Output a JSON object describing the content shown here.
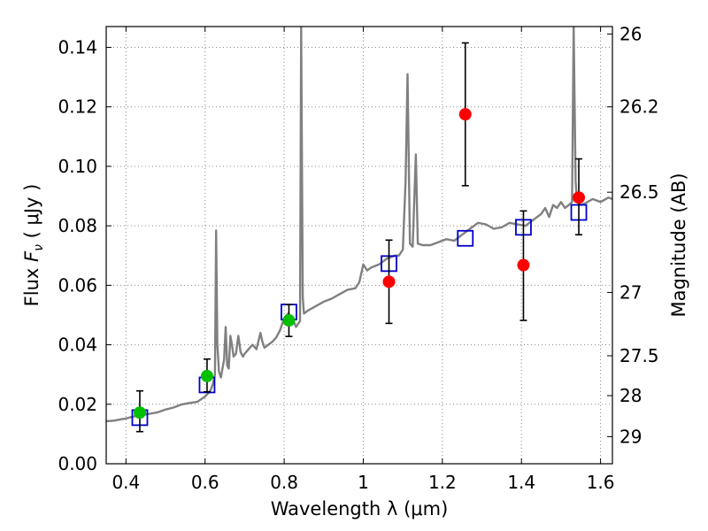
{
  "chart_data": {
    "type": "scatter",
    "xlabel": "Wavelength  λ (μm)",
    "ylabel": "Flux  F_ν  ( μJy )",
    "ylabel_parts": {
      "prefix": "Flux  ",
      "symbol": "F",
      "subscript": "ν",
      "suffix": "  ( μJy )"
    },
    "ylabel_right": "Magnitude (AB)",
    "xlim": [
      0.35,
      1.63
    ],
    "ylim": [
      0.0,
      0.147
    ],
    "grid": true,
    "x_ticks": [
      0.4,
      0.6,
      0.8,
      1.0,
      1.2,
      1.4,
      1.6
    ],
    "x_tick_labels": [
      "0.4",
      "0.6",
      "0.8",
      "1",
      "1.2",
      "1.4",
      "1.6"
    ],
    "y_ticks": [
      0.0,
      0.02,
      0.04,
      0.06,
      0.08,
      0.1,
      0.12,
      0.14
    ],
    "y_tick_labels": [
      "0.00",
      "0.02",
      "0.04",
      "0.06",
      "0.08",
      "0.10",
      "0.12",
      "0.14"
    ],
    "right_ticks": [
      {
        "flux": 0.1445,
        "label": "26"
      },
      {
        "flux": 0.12,
        "label": "26.2"
      },
      {
        "flux": 0.0913,
        "label": "26.5"
      },
      {
        "flux": 0.0576,
        "label": "27"
      },
      {
        "flux": 0.0363,
        "label": "27.5"
      },
      {
        "flux": 0.0229,
        "label": "28"
      },
      {
        "flux": 0.0091,
        "label": "29"
      }
    ],
    "colors": {
      "model": "#808080",
      "green": "#00c000",
      "red": "#ff0000",
      "blue": "#0000cc",
      "grid": "#888888",
      "error": "#000000"
    },
    "series": [
      {
        "name": "model_template",
        "style": "line",
        "points": [
          [
            0.35,
            0.0143
          ],
          [
            0.37,
            0.0145
          ],
          [
            0.39,
            0.015
          ],
          [
            0.4,
            0.0152
          ],
          [
            0.41,
            0.0156
          ],
          [
            0.42,
            0.0159
          ],
          [
            0.44,
            0.0163
          ],
          [
            0.46,
            0.0168
          ],
          [
            0.48,
            0.0173
          ],
          [
            0.5,
            0.0182
          ],
          [
            0.52,
            0.0189
          ],
          [
            0.54,
            0.0199
          ],
          [
            0.56,
            0.0204
          ],
          [
            0.58,
            0.0208
          ],
          [
            0.6,
            0.0226
          ],
          [
            0.61,
            0.024
          ],
          [
            0.615,
            0.025
          ],
          [
            0.62,
            0.027
          ],
          [
            0.625,
            0.03
          ],
          [
            0.628,
            0.0784
          ],
          [
            0.631,
            0.04
          ],
          [
            0.635,
            0.031
          ],
          [
            0.64,
            0.029
          ],
          [
            0.648,
            0.035
          ],
          [
            0.652,
            0.046
          ],
          [
            0.656,
            0.033
          ],
          [
            0.66,
            0.032
          ],
          [
            0.664,
            0.043
          ],
          [
            0.668,
            0.04
          ],
          [
            0.672,
            0.036
          ],
          [
            0.678,
            0.037
          ],
          [
            0.684,
            0.043
          ],
          [
            0.69,
            0.0375
          ],
          [
            0.696,
            0.036
          ],
          [
            0.7,
            0.037
          ],
          [
            0.71,
            0.0385
          ],
          [
            0.72,
            0.04
          ],
          [
            0.73,
            0.0385
          ],
          [
            0.74,
            0.044
          ],
          [
            0.745,
            0.041
          ],
          [
            0.75,
            0.039
          ],
          [
            0.76,
            0.04
          ],
          [
            0.77,
            0.041
          ],
          [
            0.78,
            0.0425
          ],
          [
            0.79,
            0.045
          ],
          [
            0.8,
            0.049
          ],
          [
            0.81,
            0.0505
          ],
          [
            0.82,
            0.049
          ],
          [
            0.83,
            0.046
          ],
          [
            0.84,
            0.048
          ],
          [
            0.843,
            0.147
          ],
          [
            0.847,
            0.056
          ],
          [
            0.85,
            0.0505
          ],
          [
            0.86,
            0.0515
          ],
          [
            0.88,
            0.053
          ],
          [
            0.9,
            0.0545
          ],
          [
            0.92,
            0.0555
          ],
          [
            0.94,
            0.057
          ],
          [
            0.96,
            0.0585
          ],
          [
            0.98,
            0.059
          ],
          [
            0.99,
            0.061
          ],
          [
            1.0,
            0.067
          ],
          [
            1.01,
            0.065
          ],
          [
            1.02,
            0.066
          ],
          [
            1.04,
            0.067
          ],
          [
            1.06,
            0.069
          ],
          [
            1.08,
            0.07
          ],
          [
            1.09,
            0.07
          ],
          [
            1.1,
            0.072
          ],
          [
            1.107,
            0.095
          ],
          [
            1.112,
            0.131
          ],
          [
            1.118,
            0.074
          ],
          [
            1.125,
            0.073
          ],
          [
            1.133,
            0.104
          ],
          [
            1.138,
            0.074
          ],
          [
            1.15,
            0.0735
          ],
          [
            1.17,
            0.0735
          ],
          [
            1.19,
            0.0745
          ],
          [
            1.21,
            0.0755
          ],
          [
            1.23,
            0.075
          ],
          [
            1.25,
            0.077
          ],
          [
            1.27,
            0.079
          ],
          [
            1.29,
            0.081
          ],
          [
            1.31,
            0.0805
          ],
          [
            1.33,
            0.079
          ],
          [
            1.35,
            0.0795
          ],
          [
            1.37,
            0.081
          ],
          [
            1.39,
            0.0805
          ],
          [
            1.41,
            0.08
          ],
          [
            1.43,
            0.082
          ],
          [
            1.45,
            0.084
          ],
          [
            1.46,
            0.086
          ],
          [
            1.47,
            0.083
          ],
          [
            1.48,
            0.087
          ],
          [
            1.49,
            0.086
          ],
          [
            1.5,
            0.088
          ],
          [
            1.51,
            0.086
          ],
          [
            1.52,
            0.087
          ],
          [
            1.528,
            0.088
          ],
          [
            1.532,
            0.147
          ],
          [
            1.537,
            0.095
          ],
          [
            1.54,
            0.0885
          ],
          [
            1.55,
            0.087
          ],
          [
            1.56,
            0.0875
          ],
          [
            1.58,
            0.089
          ],
          [
            1.6,
            0.088
          ],
          [
            1.62,
            0.0895
          ],
          [
            1.63,
            0.089
          ]
        ]
      },
      {
        "name": "model_photometry",
        "style": "open_square",
        "points": [
          [
            0.435,
            0.0155
          ],
          [
            0.605,
            0.0265
          ],
          [
            0.812,
            0.051
          ],
          [
            1.065,
            0.0673
          ],
          [
            1.258,
            0.0758
          ],
          [
            1.405,
            0.0795
          ],
          [
            1.545,
            0.0845
          ]
        ]
      },
      {
        "name": "detections",
        "style": "filled_circle",
        "color_key": "green",
        "points": [
          {
            "x": 0.435,
            "y": 0.0172,
            "err_low": 0.0108,
            "err_high": 0.0245
          },
          {
            "x": 0.605,
            "y": 0.0295,
            "err_low": 0.0242,
            "err_high": 0.0352
          },
          {
            "x": 0.812,
            "y": 0.0482,
            "err_low": 0.0428,
            "err_high": 0.0535
          }
        ]
      },
      {
        "name": "measurements",
        "style": "filled_circle",
        "color_key": "red",
        "points": [
          {
            "x": 1.065,
            "y": 0.0612,
            "err_low": 0.0472,
            "err_high": 0.0752
          },
          {
            "x": 1.258,
            "y": 0.1175,
            "err_low": 0.0935,
            "err_high": 0.1415
          },
          {
            "x": 1.405,
            "y": 0.0668,
            "err_low": 0.0482,
            "err_high": 0.085
          },
          {
            "x": 1.545,
            "y": 0.0895,
            "err_low": 0.077,
            "err_high": 0.1025
          }
        ]
      }
    ]
  }
}
